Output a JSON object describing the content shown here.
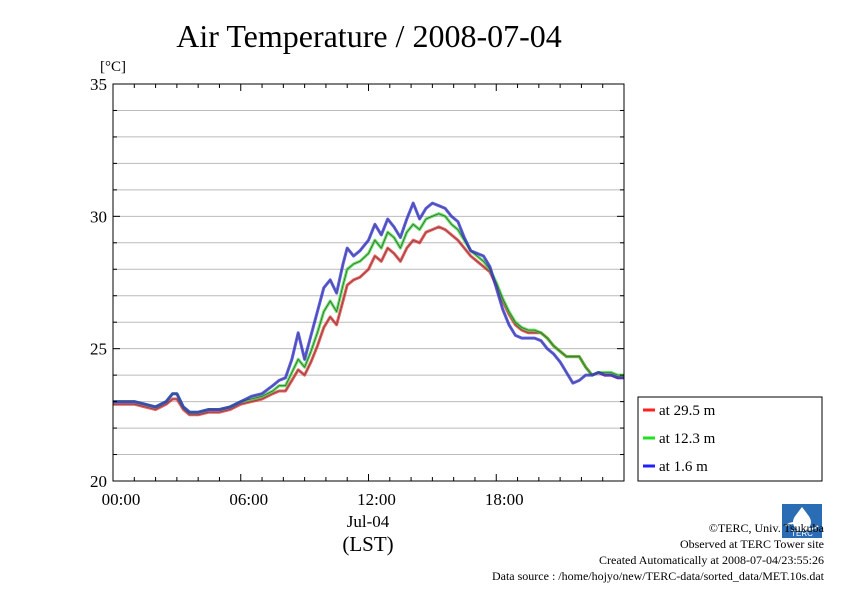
{
  "chart_data": {
    "type": "line",
    "title": "Air Temperature / 2008-07-04",
    "ylabel": "[°C]",
    "xlabel": "(LST)",
    "date_label": "Jul-04",
    "ylim": [
      20,
      35
    ],
    "yticks": [
      20,
      25,
      30,
      35
    ],
    "xlim": [
      0,
      24
    ],
    "xticks": [
      {
        "value": 0,
        "label": "00:00"
      },
      {
        "value": 6,
        "label": "06:00"
      },
      {
        "value": 12,
        "label": "12:00"
      },
      {
        "value": 18,
        "label": "18:00"
      }
    ],
    "grid": true,
    "legend_position": "right-bottom",
    "series": [
      {
        "name": "at 29.5 m",
        "color": "#ff2020",
        "offset": 0,
        "x": [
          0,
          0.5,
          1,
          1.5,
          2,
          2.5,
          2.8,
          3,
          3.3,
          3.6,
          4,
          4.5,
          5,
          5.5,
          6,
          6.5,
          7,
          7.5,
          7.8,
          8.1,
          8.4,
          8.7,
          9,
          9.3,
          9.6,
          9.9,
          10.2,
          10.5,
          10.8,
          11,
          11.3,
          11.6,
          12,
          12.3,
          12.6,
          12.9,
          13.2,
          13.5,
          13.8,
          14.1,
          14.4,
          14.7,
          15,
          15.3,
          15.6,
          15.9,
          16.2,
          16.5,
          16.8,
          17.1,
          17.4,
          17.7,
          18,
          18.3,
          18.6,
          18.9,
          19.2,
          19.5,
          19.8,
          20.1,
          20.4,
          20.7,
          21,
          21.3,
          21.6,
          21.9,
          22.2,
          22.5,
          22.8,
          23.1,
          23.4,
          23.7,
          24
        ],
        "y": [
          22.9,
          22.9,
          22.9,
          22.8,
          22.7,
          22.9,
          23.1,
          23.1,
          22.7,
          22.5,
          22.5,
          22.6,
          22.6,
          22.7,
          22.9,
          23.0,
          23.1,
          23.3,
          23.4,
          23.4,
          23.8,
          24.2,
          24.0,
          24.5,
          25.1,
          25.8,
          26.2,
          25.9,
          26.8,
          27.4,
          27.6,
          27.7,
          28.0,
          28.5,
          28.3,
          28.8,
          28.6,
          28.3,
          28.8,
          29.1,
          29.0,
          29.4,
          29.5,
          29.6,
          29.5,
          29.3,
          29.1,
          28.8,
          28.5,
          28.3,
          28.1,
          27.9,
          27.4,
          26.8,
          26.3,
          25.9,
          25.7,
          25.6,
          25.6,
          25.6,
          25.4,
          25.1,
          24.9,
          24.7,
          24.7,
          24.7,
          24.3,
          24.0,
          24.1,
          24.0,
          24.0,
          23.9,
          23.9
        ]
      },
      {
        "name": "at 12.3 m",
        "color": "#20e020",
        "offset": 0.1,
        "x": [
          0,
          0.5,
          1,
          1.5,
          2,
          2.5,
          2.8,
          3,
          3.3,
          3.6,
          4,
          4.5,
          5,
          5.5,
          6,
          6.5,
          7,
          7.5,
          7.8,
          8.1,
          8.4,
          8.7,
          9,
          9.3,
          9.6,
          9.9,
          10.2,
          10.5,
          10.8,
          11,
          11.3,
          11.6,
          12,
          12.3,
          12.6,
          12.9,
          13.2,
          13.5,
          13.8,
          14.1,
          14.4,
          14.7,
          15,
          15.3,
          15.6,
          15.9,
          16.2,
          16.5,
          16.8,
          17.1,
          17.4,
          17.7,
          18,
          18.3,
          18.6,
          18.9,
          19.2,
          19.5,
          19.8,
          20.1,
          20.4,
          20.7,
          21,
          21.3,
          21.6,
          21.9,
          22.2,
          22.5,
          22.8,
          23.1,
          23.4,
          23.7,
          24
        ],
        "y": [
          23.0,
          23.0,
          23.0,
          22.9,
          22.8,
          23.0,
          23.3,
          23.3,
          22.8,
          22.6,
          22.6,
          22.7,
          22.7,
          22.8,
          23.0,
          23.1,
          23.2,
          23.4,
          23.6,
          23.6,
          24.1,
          24.6,
          24.3,
          24.9,
          25.6,
          26.4,
          26.8,
          26.4,
          27.4,
          28.0,
          28.2,
          28.3,
          28.6,
          29.1,
          28.8,
          29.4,
          29.2,
          28.8,
          29.4,
          29.7,
          29.5,
          29.9,
          30.0,
          30.1,
          30.0,
          29.7,
          29.5,
          29.1,
          28.7,
          28.5,
          28.3,
          28.0,
          27.5,
          26.9,
          26.4,
          26.0,
          25.8,
          25.7,
          25.7,
          25.6,
          25.4,
          25.1,
          24.9,
          24.7,
          24.7,
          24.7,
          24.3,
          24.0,
          24.1,
          24.1,
          24.1,
          24.0,
          24.0
        ]
      },
      {
        "name": "at 1.6 m",
        "color": "#2020ff",
        "offset": 0.2,
        "x": [
          0,
          0.5,
          1,
          1.5,
          2,
          2.5,
          2.8,
          3,
          3.3,
          3.6,
          4,
          4.5,
          5,
          5.5,
          6,
          6.5,
          7,
          7.5,
          7.8,
          8.1,
          8.4,
          8.7,
          9,
          9.3,
          9.6,
          9.9,
          10.2,
          10.5,
          10.8,
          11,
          11.3,
          11.6,
          12,
          12.3,
          12.6,
          12.9,
          13.2,
          13.5,
          13.8,
          14.1,
          14.4,
          14.7,
          15,
          15.3,
          15.6,
          15.9,
          16.2,
          16.5,
          16.8,
          17.1,
          17.4,
          17.7,
          18,
          18.3,
          18.6,
          18.9,
          19.2,
          19.5,
          19.8,
          20.1,
          20.4,
          20.7,
          21,
          21.3,
          21.6,
          21.9,
          22.2,
          22.5,
          22.8,
          23.1,
          23.4,
          23.7,
          24
        ],
        "y": [
          23.0,
          23.0,
          23.0,
          22.9,
          22.8,
          23.0,
          23.3,
          23.3,
          22.8,
          22.6,
          22.6,
          22.7,
          22.7,
          22.8,
          23.0,
          23.2,
          23.3,
          23.6,
          23.8,
          23.9,
          24.6,
          25.6,
          24.6,
          25.5,
          26.4,
          27.3,
          27.6,
          27.1,
          28.2,
          28.8,
          28.5,
          28.7,
          29.1,
          29.7,
          29.3,
          29.9,
          29.6,
          29.2,
          29.9,
          30.5,
          29.9,
          30.3,
          30.5,
          30.4,
          30.3,
          30.0,
          29.8,
          29.2,
          28.7,
          28.6,
          28.5,
          28.1,
          27.3,
          26.5,
          25.9,
          25.5,
          25.4,
          25.4,
          25.4,
          25.3,
          25.0,
          24.8,
          24.5,
          24.1,
          23.7,
          23.8,
          24.0,
          24.0,
          24.1,
          24.0,
          24.0,
          23.9,
          23.9
        ]
      }
    ]
  },
  "credits": {
    "org": "©TERC, Univ. Tsukuba",
    "site": "Observed at TERC Tower site",
    "created": "Created Automatically at 2008-07-04/23:55:26",
    "source": "Data source : /home/hojyo/new/TERC-data/sorted_data/MET.10s.dat"
  },
  "logo_text": "TERC"
}
